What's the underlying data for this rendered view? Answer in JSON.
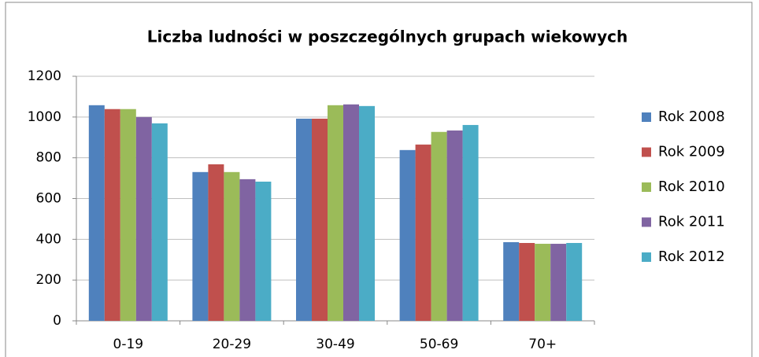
{
  "chart_data": {
    "type": "bar",
    "title": "Liczba ludności w poszczególnych grupach wiekowych",
    "categories": [
      "0-19",
      "20-29",
      "30-49",
      "50-69",
      "70+"
    ],
    "series": [
      {
        "name": "Rok 2008",
        "color": "#4f81bd",
        "values": [
          1058,
          730,
          992,
          838,
          386
        ]
      },
      {
        "name": "Rok 2009",
        "color": "#c0504d",
        "values": [
          1039,
          768,
          992,
          865,
          382
        ]
      },
      {
        "name": "Rok 2010",
        "color": "#9bbb59",
        "values": [
          1039,
          730,
          1058,
          927,
          378
        ]
      },
      {
        "name": "Rok 2011",
        "color": "#8064a2",
        "values": [
          1000,
          695,
          1062,
          934,
          378
        ]
      },
      {
        "name": "Rok 2012",
        "color": "#4bacc6",
        "values": [
          969,
          683,
          1054,
          961,
          382
        ]
      }
    ],
    "ylim": [
      0,
      1200
    ],
    "yticks": [
      0,
      200,
      400,
      600,
      800,
      1000,
      1200
    ],
    "grid": true,
    "legend": "right"
  }
}
